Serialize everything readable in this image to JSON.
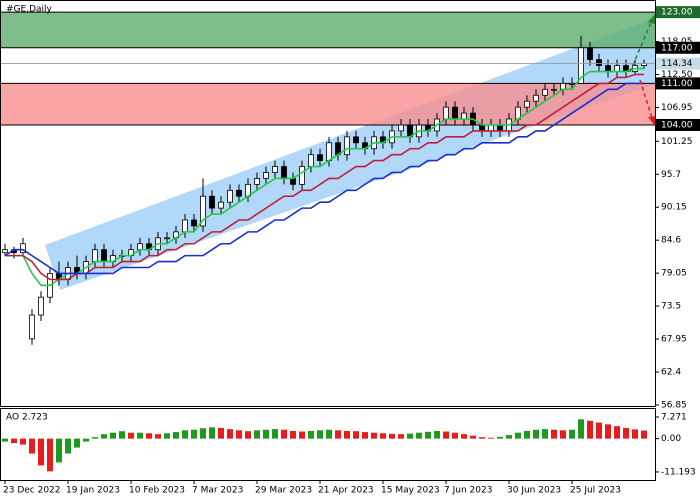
{
  "chart_data": {
    "type": "candlestick",
    "title": "#GE,Daily",
    "ylim": [
      56.85,
      124.2
    ],
    "yticks": [
      56.85,
      62.4,
      67.95,
      73.5,
      79.05,
      84.6,
      90.15,
      95.7,
      101.25,
      106.95,
      {
        "value": 112.5,
        "label": "112.50"
      },
      118.05
    ],
    "xticks": [
      {
        "value": 0,
        "label": "23 Dec 2022"
      },
      {
        "value": 7,
        "label": "19 Jan 2023"
      },
      {
        "value": 14,
        "label": "10 Feb 2023"
      },
      {
        "value": 21,
        "label": "7 Mar 2023"
      },
      {
        "value": 28,
        "label": "29 Mar 2023"
      },
      {
        "value": 35,
        "label": "21 Apr 2023"
      },
      {
        "value": 42,
        "label": "15 May 2023"
      },
      {
        "value": 49,
        "label": "7 Jun 2023"
      },
      {
        "value": 56,
        "label": "30 Jun 2023"
      },
      {
        "value": 63,
        "label": "25 Jul 2023"
      }
    ],
    "last_price": 114.34,
    "levels": [
      {
        "value": 123,
        "label": "123.00"
      },
      {
        "value": 117,
        "label": "117.00"
      },
      {
        "value": 111,
        "label": "111.00"
      },
      {
        "value": 104,
        "label": "104.00"
      }
    ],
    "zones": [
      {
        "from": 117,
        "to": 123,
        "color": "#5fae6e"
      },
      {
        "from": 104,
        "to": 111,
        "color": "#f78f8f"
      }
    ],
    "candles": [
      [
        82.5,
        84,
        82,
        83
      ],
      [
        83,
        83.5,
        81.5,
        82.5
      ],
      [
        82.5,
        85,
        82,
        84
      ],
      [
        68,
        73,
        67,
        72
      ],
      [
        72,
        76,
        71,
        75
      ],
      [
        75,
        80,
        74,
        79
      ],
      [
        79,
        81,
        77,
        78
      ],
      [
        78,
        81,
        77,
        80
      ],
      [
        80,
        82,
        78,
        79
      ],
      [
        79,
        82,
        78,
        81
      ],
      [
        81,
        84,
        80,
        83
      ],
      [
        83,
        84,
        80,
        81
      ],
      [
        81,
        83,
        80,
        82
      ],
      [
        82,
        83,
        81,
        82
      ],
      [
        82,
        84,
        81,
        83
      ],
      [
        83,
        85,
        82,
        84
      ],
      [
        84,
        85,
        82,
        83
      ],
      [
        83,
        86,
        82,
        85
      ],
      [
        85,
        86,
        84,
        85
      ],
      [
        85,
        87,
        84,
        86
      ],
      [
        86,
        89,
        85,
        88
      ],
      [
        88,
        89,
        86,
        87
      ],
      [
        87,
        95,
        86,
        92
      ],
      [
        92,
        93,
        89,
        90
      ],
      [
        90,
        92,
        89,
        91
      ],
      [
        91,
        94,
        90,
        93
      ],
      [
        93,
        94,
        91,
        92
      ],
      [
        92,
        95,
        91,
        94
      ],
      [
        94,
        96,
        93,
        95
      ],
      [
        95,
        97,
        94,
        96
      ],
      [
        96,
        98,
        95,
        97
      ],
      [
        97,
        98,
        94,
        95
      ],
      [
        95,
        96,
        93,
        94
      ],
      [
        94,
        98,
        93,
        97
      ],
      [
        97,
        100,
        96,
        99
      ],
      [
        99,
        100,
        97,
        98
      ],
      [
        98,
        102,
        97,
        101
      ],
      [
        101,
        102,
        98,
        99
      ],
      [
        99,
        103,
        98,
        102
      ],
      [
        102,
        103,
        100,
        101
      ],
      [
        101,
        102,
        99,
        100
      ],
      [
        100,
        103,
        99,
        102
      ],
      [
        102,
        103,
        100,
        101
      ],
      [
        101,
        104,
        100,
        103
      ],
      [
        103,
        105,
        102,
        104
      ],
      [
        104,
        105,
        101,
        102
      ],
      [
        102,
        105,
        101,
        104
      ],
      [
        104,
        105,
        102,
        103
      ],
      [
        103,
        106,
        102,
        105
      ],
      [
        105,
        108,
        104,
        107
      ],
      [
        107,
        108,
        104,
        105
      ],
      [
        105,
        107,
        104,
        106
      ],
      [
        106,
        107,
        103,
        104
      ],
      [
        104,
        105,
        102,
        103
      ],
      [
        103,
        105,
        102,
        104
      ],
      [
        104,
        105,
        102,
        103
      ],
      [
        103,
        106,
        102,
        105
      ],
      [
        105,
        108,
        104,
        107
      ],
      [
        107,
        109,
        106,
        108
      ],
      [
        108,
        110,
        107,
        109
      ],
      [
        109,
        111,
        108,
        110
      ],
      [
        110,
        111,
        109,
        110
      ],
      [
        110,
        112,
        109,
        111
      ],
      [
        111,
        112,
        110,
        111
      ],
      [
        111,
        119,
        111,
        117
      ],
      [
        117,
        118,
        114,
        115
      ],
      [
        115,
        116,
        113,
        114
      ],
      [
        114,
        115,
        112,
        113
      ],
      [
        113,
        115,
        112,
        114
      ],
      [
        114,
        115,
        112,
        113
      ],
      [
        113,
        115,
        112.5,
        114
      ],
      [
        114,
        115,
        113.5,
        114.34
      ]
    ],
    "series": [
      {
        "color": "#22cc44",
        "values": [
          82,
          82,
          82,
          79,
          77,
          77,
          78,
          79,
          79,
          80,
          81,
          81,
          81,
          82,
          82,
          83,
          83,
          84,
          84,
          85,
          86,
          86,
          88,
          89,
          89,
          90,
          91,
          92,
          93,
          94,
          95,
          95,
          95,
          96,
          97,
          97,
          98,
          99,
          100,
          100,
          100,
          101,
          101,
          102,
          102,
          102,
          103,
          103,
          104,
          105,
          105,
          105,
          105,
          104,
          104,
          104,
          104,
          105,
          106,
          107,
          108,
          109,
          110,
          110,
          112,
          113,
          113,
          113,
          113,
          113,
          113.5,
          113.5
        ]
      },
      {
        "color": "#c0203a",
        "values": [
          82,
          82,
          82,
          81,
          79,
          78,
          78,
          78,
          79,
          79,
          80,
          80,
          80,
          81,
          81,
          81,
          82,
          82,
          83,
          83,
          84,
          84,
          85,
          86,
          86,
          87,
          88,
          88,
          89,
          90,
          91,
          92,
          92,
          93,
          93,
          94,
          95,
          95,
          96,
          97,
          97,
          98,
          98,
          99,
          99,
          100,
          100,
          101,
          101,
          102,
          102,
          102,
          103,
          103,
          103,
          103,
          103,
          103,
          104,
          104,
          105,
          106,
          107,
          108,
          109,
          110,
          111,
          111,
          112,
          112,
          112.5,
          112.5
        ]
      },
      {
        "color": "#1a2fd0",
        "values": [
          82,
          83,
          83,
          82,
          81,
          80,
          79,
          79,
          79,
          79,
          79,
          79,
          79,
          80,
          80,
          80,
          80,
          81,
          81,
          81,
          82,
          82,
          82,
          83,
          84,
          84,
          85,
          86,
          86,
          87,
          88,
          88,
          89,
          90,
          90,
          91,
          91,
          92,
          93,
          93,
          94,
          95,
          95,
          96,
          96,
          97,
          97,
          98,
          98,
          99,
          99,
          100,
          100,
          101,
          101,
          101,
          101,
          102,
          102,
          103,
          103,
          104,
          105,
          106,
          107,
          108,
          109,
          110,
          110,
          111,
          111,
          111
        ]
      }
    ],
    "ao": {
      "title": "AO 2.723",
      "ylim": [
        -13.9,
        10.3
      ],
      "yticks": [
        {
          "value": 7.271,
          "label": "7.271"
        },
        {
          "value": 0,
          "label": "0.00"
        },
        {
          "value": -11.193,
          "label": "-11.193"
        }
      ],
      "up_color": "#1f9a1f",
      "down_color": "#e81c1c",
      "values": [
        -1,
        -1.5,
        -2,
        -5,
        -9,
        -11,
        -8,
        -5,
        -3,
        -1,
        0.5,
        1.5,
        2,
        2.5,
        2,
        2,
        1.8,
        1.5,
        1.8,
        2.2,
        2.8,
        3,
        3.5,
        3.8,
        3.6,
        3.2,
        2.8,
        2.5,
        2.8,
        3,
        3.2,
        3,
        2.6,
        2.4,
        2.6,
        2.8,
        3,
        2.8,
        2.6,
        2.5,
        2.2,
        2,
        1.8,
        1.6,
        1.5,
        1.7,
        2,
        2.3,
        2.6,
        2.4,
        2,
        1.5,
        1,
        0.5,
        0.3,
        0.6,
        1.2,
        2,
        2.6,
        3,
        3.2,
        3,
        2.8,
        3,
        6.5,
        6,
        5.4,
        4.8,
        4.2,
        3.6,
        3.1,
        2.723
      ]
    }
  }
}
